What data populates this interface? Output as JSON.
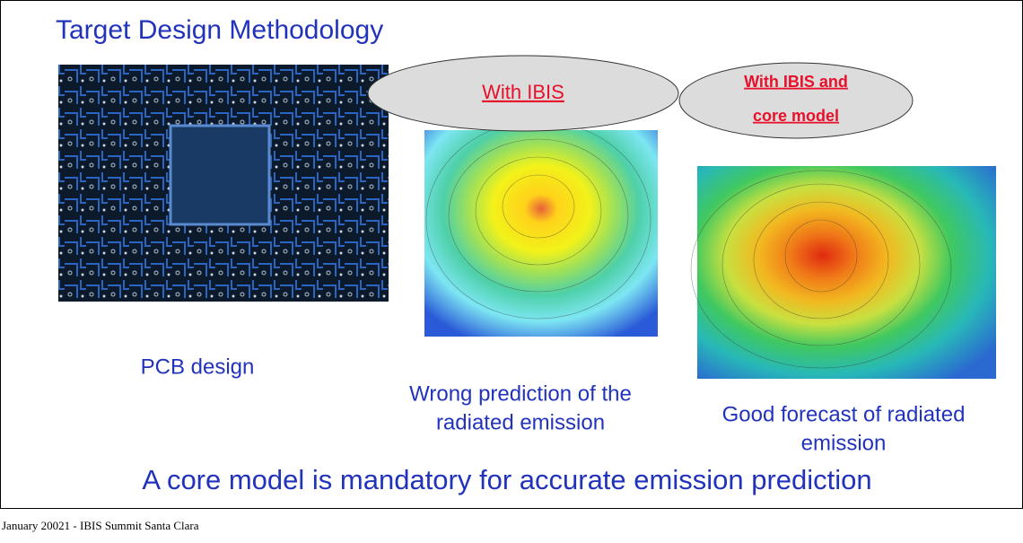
{
  "slide": {
    "title": "Target Design Methodology",
    "bubbles": [
      {
        "lines": [
          "With IBIS"
        ]
      },
      {
        "lines": [
          "With IBIS and",
          "core model"
        ]
      }
    ],
    "captions": [
      {
        "lines": [
          "PCB design"
        ]
      },
      {
        "lines": [
          "Wrong prediction of the",
          "radiated emission"
        ]
      },
      {
        "lines": [
          "Good forecast of radiated",
          "emission"
        ]
      }
    ],
    "conclusion": "A core model is mandatory for accurate emission prediction",
    "footer": "January  20021 - IBIS Summit Santa Clara"
  }
}
